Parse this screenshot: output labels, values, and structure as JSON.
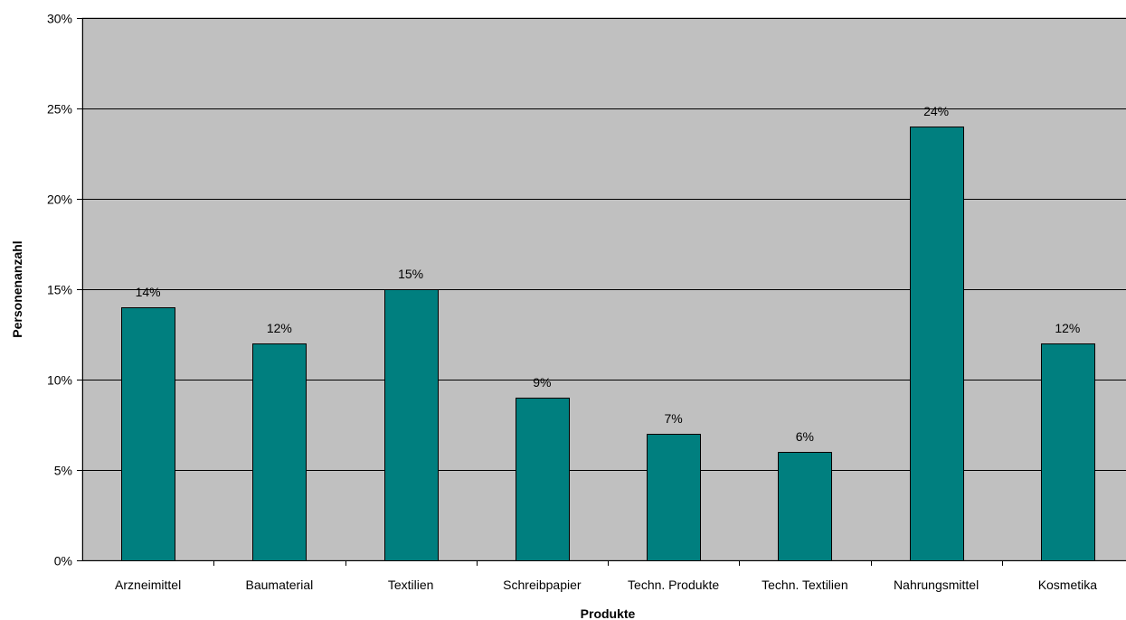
{
  "chart_data": {
    "type": "bar",
    "title": "",
    "xlabel": "Produkte",
    "ylabel": "Personenanzahl",
    "categories": [
      "Arzneimittel",
      "Baumaterial",
      "Textilien",
      "Schreibpapier",
      "Techn. Produkte",
      "Techn. Textilien",
      "Nahrungsmittel",
      "Kosmetika"
    ],
    "values": [
      14,
      12,
      15,
      9,
      7,
      6,
      24,
      12
    ],
    "data_labels": [
      "14%",
      "12%",
      "15%",
      "9%",
      "7%",
      "6%",
      "24%",
      "12%"
    ],
    "ylim": [
      0,
      30
    ],
    "yticks": [
      0,
      5,
      10,
      15,
      20,
      25,
      30
    ],
    "ytick_labels": [
      "0%",
      "5%",
      "10%",
      "15%",
      "20%",
      "25%",
      "30%"
    ],
    "grid": true,
    "legend": "none"
  },
  "colors": {
    "bar": "#007f7f",
    "plot_background": "#c0c0c0",
    "gridline": "#000000"
  }
}
